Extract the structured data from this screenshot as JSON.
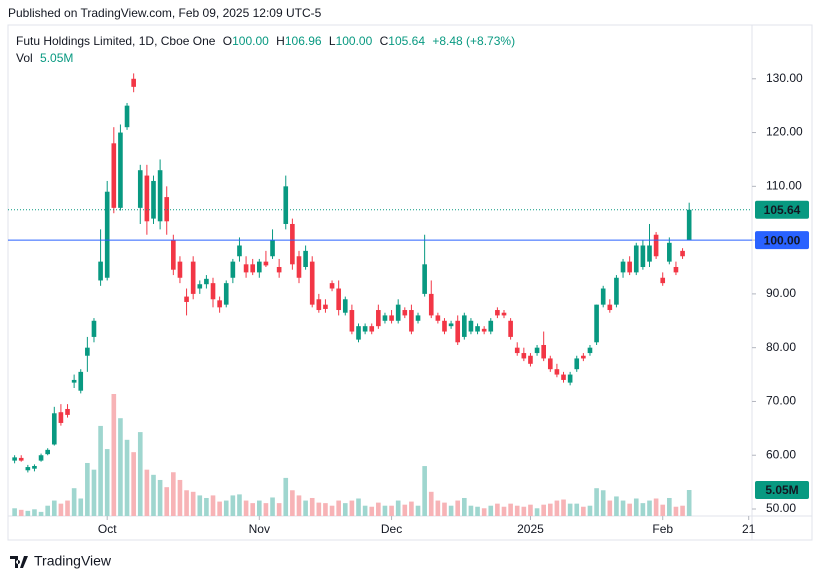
{
  "header": {
    "published": "Published on TradingView.com, Feb 09, 2025 12:09 UTC-5"
  },
  "footer": {
    "brand": "TradingView"
  },
  "chart_data": {
    "type": "candlestick",
    "legend": {
      "symbol": "Futu Holdings Limited, 1D, Cboe One",
      "items": [
        {
          "key": "O",
          "value": "100.00"
        },
        {
          "key": "H",
          "value": "106.96"
        },
        {
          "key": "L",
          "value": "100.00"
        },
        {
          "key": "C",
          "value": "105.64"
        }
      ],
      "change": "+8.48 (+8.73%)",
      "volume_key": "Vol",
      "volume_value": "5.05M"
    },
    "up_color": "#089981",
    "down_color": "#f23645",
    "volume_up_color": "#9fd6cf",
    "volume_down_color": "#f7b3b6",
    "xlim": [
      -1,
      111.5
    ],
    "xticks": [
      {
        "value": 14,
        "label": "Oct"
      },
      {
        "value": 37,
        "label": "Nov"
      },
      {
        "value": 57,
        "label": "Dec"
      },
      {
        "value": 78,
        "label": "2025"
      },
      {
        "value": 98,
        "label": "Feb"
      },
      {
        "value": 111,
        "label": "21"
      }
    ],
    "ylim": [
      48.7,
      140
    ],
    "yticks": [
      {
        "value": 50,
        "label": "50.00"
      },
      {
        "value": 60,
        "label": "60.00"
      },
      {
        "value": 70,
        "label": "70.00"
      },
      {
        "value": 80,
        "label": "80.00"
      },
      {
        "value": 90,
        "label": "90.00"
      },
      {
        "value": 100,
        "label": "100.00"
      },
      {
        "value": 110,
        "label": "110.00"
      },
      {
        "value": 120,
        "label": "120.00"
      },
      {
        "value": 130,
        "label": "130.00"
      }
    ],
    "price_lines": [
      {
        "value": 105.64,
        "label": "105.64",
        "color": "#089981",
        "dash": true
      },
      {
        "value": 100,
        "label": "100.00",
        "color": "#2962ff",
        "dash": false
      }
    ],
    "open": [
      59,
      59.5,
      57.2,
      57.5,
      59,
      60.2,
      62,
      68,
      68.6,
      73.5,
      72,
      78.5,
      82,
      92.5,
      93,
      118,
      106,
      121,
      130,
      106,
      112,
      104,
      103.5,
      108,
      100,
      96,
      89.5,
      96,
      91,
      91.8,
      92,
      88.8,
      88,
      93,
      97,
      95.5,
      95.5,
      94,
      96,
      97,
      95,
      103,
      103,
      97,
      95,
      96,
      89,
      88,
      92,
      91,
      86.5,
      87,
      81.5,
      83,
      84,
      87,
      85,
      86,
      85,
      87,
      87,
      85,
      90,
      90,
      86,
      85,
      84,
      85,
      82,
      83,
      83,
      83.5,
      83,
      87,
      86.5,
      85,
      80,
      79,
      78.5,
      79,
      80.5,
      78,
      76,
      75,
      73.5,
      76,
      78.5,
      79,
      81,
      88,
      88,
      88,
      94,
      96,
      94,
      95,
      96,
      101,
      93,
      96,
      95,
      98,
      100
    ],
    "high": [
      60,
      60,
      58.2,
      58.3,
      60.3,
      61.3,
      69,
      69.5,
      69.5,
      75,
      76,
      82,
      85.5,
      102,
      111,
      121,
      121.5,
      125.5,
      131,
      114,
      114,
      112,
      115,
      110,
      101,
      97,
      91,
      97,
      92.5,
      93.5,
      93,
      89.5,
      92.5,
      96.5,
      100.5,
      97,
      96.5,
      96.5,
      98,
      102,
      96.5,
      112,
      104,
      98,
      99,
      97,
      90,
      89,
      92.5,
      92.5,
      89.5,
      88,
      84.5,
      84.5,
      84.5,
      88,
      86.5,
      87,
      89,
      87.5,
      88,
      86.5,
      101,
      92.5,
      86.5,
      85.5,
      85,
      86,
      86.5,
      85.5,
      84.5,
      84,
      85.5,
      87.5,
      87,
      85.5,
      81,
      80,
      79,
      80.5,
      83,
      78.5,
      77,
      75.5,
      75.5,
      78.5,
      79,
      80.5,
      88,
      91.5,
      89,
      93.5,
      96.5,
      97,
      99.5,
      100,
      103,
      101.5,
      94,
      100.5,
      96,
      98.5,
      106.96
    ],
    "low": [
      58.5,
      58.8,
      56.8,
      57,
      58.8,
      60,
      61.8,
      65.5,
      67,
      72.5,
      71.5,
      75.5,
      81,
      91.5,
      92.5,
      105,
      105.5,
      120.5,
      127.5,
      103,
      101,
      103,
      102,
      101,
      93.5,
      92,
      86,
      89,
      90,
      91,
      87.5,
      86.5,
      87.5,
      92,
      96,
      93,
      93.5,
      93,
      95,
      96.5,
      93,
      102,
      94.5,
      92,
      94.5,
      87.5,
      86.5,
      86.5,
      90.5,
      86,
      86,
      82.5,
      81,
      82.5,
      82.5,
      83.5,
      84.5,
      84.5,
      84.5,
      85.5,
      82.5,
      84.5,
      89.5,
      85.5,
      84.5,
      82.5,
      83.5,
      80.5,
      81.5,
      82.5,
      82.5,
      82.5,
      82.5,
      85.5,
      85.5,
      81.5,
      78.5,
      77.5,
      76.5,
      78.5,
      77.5,
      75.5,
      74.5,
      73.5,
      73,
      75.5,
      77.5,
      78.5,
      80.5,
      87.5,
      86.5,
      87.5,
      93,
      93.5,
      93.5,
      94.5,
      95,
      96.5,
      91.5,
      95.5,
      93.5,
      96.5,
      100
    ],
    "close": [
      59.6,
      59,
      57.8,
      58,
      60,
      61,
      67.8,
      66,
      67.5,
      74,
      75.5,
      80,
      85,
      96,
      109,
      106,
      120,
      125,
      128.5,
      113,
      103.5,
      111,
      113,
      103.5,
      94.5,
      93,
      88.5,
      90,
      91.8,
      92.8,
      89,
      87.5,
      92,
      96,
      99,
      94,
      94,
      96,
      95.3,
      100,
      94,
      110,
      95.5,
      93,
      98,
      88,
      87,
      87.2,
      91,
      87,
      89,
      83,
      84,
      84,
      83,
      84,
      86,
      85,
      88,
      86,
      83,
      86,
      95.5,
      86,
      85,
      83,
      84.5,
      81,
      86,
      85,
      84,
      83,
      85,
      86,
      86,
      82,
      79,
      78,
      77,
      80,
      78,
      76,
      75,
      74,
      75,
      78,
      78,
      80,
      88,
      91,
      87,
      93,
      96,
      94,
      99,
      99,
      99,
      97,
      92,
      99.5,
      94,
      97,
      105.64
    ],
    "volume": [
      1.5,
      1.2,
      1,
      1.3,
      0.8,
      2,
      3,
      2.4,
      3,
      5.4,
      3.4,
      10.3,
      9,
      17.5,
      13,
      23.7,
      19,
      14.8,
      12.4,
      16.3,
      9,
      8,
      7,
      5.6,
      8.5,
      7,
      5,
      4.7,
      4,
      3.5,
      4,
      2.8,
      3,
      4,
      4.2,
      3,
      2.5,
      3,
      2.5,
      3.6,
      2.5,
      7.4,
      5,
      4,
      3,
      3.5,
      2.6,
      2.5,
      2,
      3,
      2.5,
      3,
      3.4,
      2,
      1.8,
      2.6,
      2,
      2,
      3,
      2.2,
      2.8,
      2,
      9.7,
      4.7,
      3,
      2.6,
      2,
      3,
      3.5,
      2,
      1.8,
      1.5,
      2,
      2.4,
      1.8,
      2.4,
      2,
      1.8,
      2.2,
      1.5,
      2.2,
      2.4,
      3,
      3.2,
      2.4,
      2.4,
      1.8,
      2,
      5.4,
      5,
      3,
      3.8,
      3,
      2.4,
      3.4,
      2.5,
      3,
      3.4,
      2.2,
      3.5,
      1.8,
      2,
      5.05
    ]
  }
}
